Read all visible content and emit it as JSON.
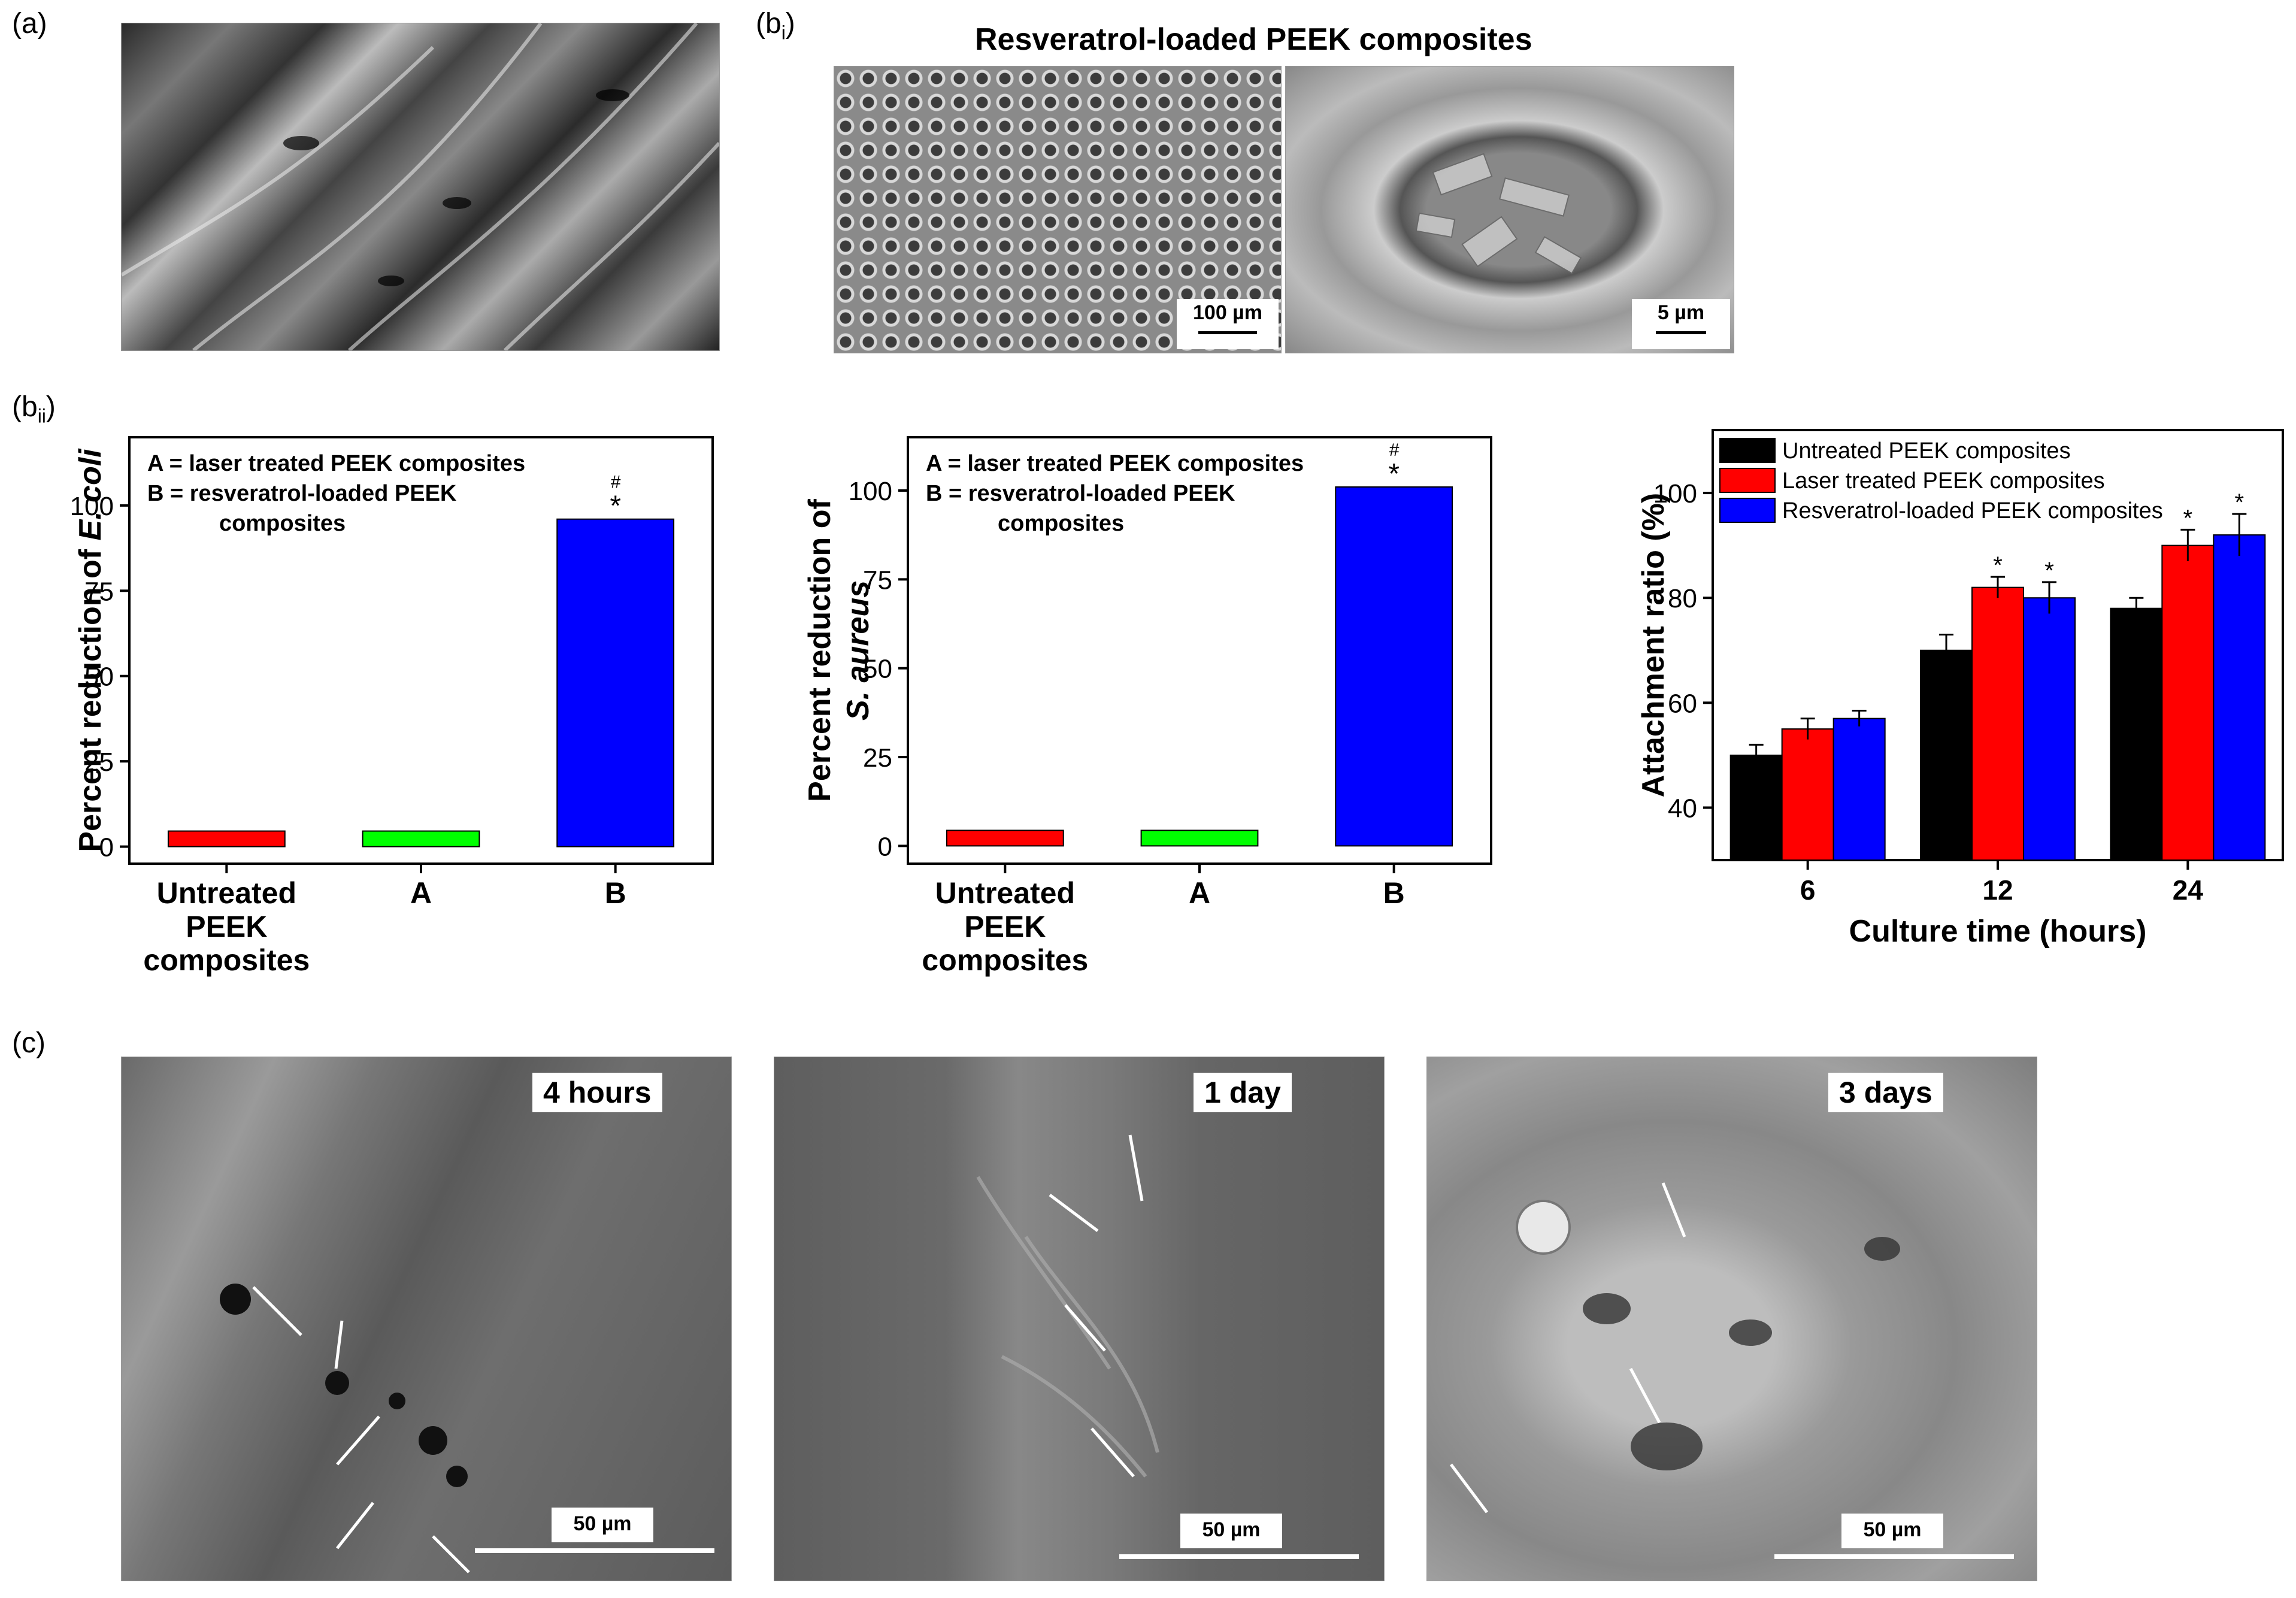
{
  "panels": {
    "a": {
      "label": "(a)"
    },
    "bi": {
      "label_main": "(b",
      "label_sub": "i",
      "label_close": ")",
      "title": "Resveratrol-loaded PEEK composites",
      "scale_left": "100 µm",
      "scale_right": "5 µm"
    },
    "bii": {
      "label_main": "(b",
      "label_sub": "ii",
      "label_close": ")"
    },
    "c": {
      "label": "(c)",
      "images": [
        {
          "time": "4 hours",
          "scale": "50 µm"
        },
        {
          "time": "1 day",
          "scale": "50 µm"
        },
        {
          "time": "3 days",
          "scale": "50 µm"
        }
      ]
    }
  },
  "chart_data": [
    {
      "type": "bar",
      "ylabel_prefix": "Percent reduction of ",
      "ylabel_italic": "E. coli",
      "categories": [
        "Untreated PEEK composites",
        "A",
        "B"
      ],
      "category_lines": [
        [
          "Untreated",
          "PEEK",
          "composites"
        ],
        [
          "A"
        ],
        [
          "B"
        ]
      ],
      "values": [
        0,
        0,
        96
      ],
      "colors": [
        "#ff0000",
        "#00ff00",
        "#0000ff"
      ],
      "ylim": [
        -5,
        120
      ],
      "yticks": [
        0,
        25,
        50,
        75,
        100
      ],
      "legend_lines": [
        "A = laser treated PEEK composites",
        "B = resveratrol-loaded PEEK",
        "composites"
      ],
      "annotations": [
        {
          "category": "B",
          "text": "#"
        },
        {
          "category": "B",
          "text": "*"
        }
      ]
    },
    {
      "type": "bar",
      "ylabel_line1": "Percent reduction of",
      "ylabel_line2": "S. aureus",
      "categories": [
        "Untreated PEEK composites",
        "A",
        "B"
      ],
      "category_lines": [
        [
          "Untreated",
          "PEEK",
          "composites"
        ],
        [
          "A"
        ],
        [
          "B"
        ]
      ],
      "values": [
        0,
        2,
        101
      ],
      "colors": [
        "#ff0000",
        "#00ff00",
        "#0000ff"
      ],
      "ylim": [
        -5,
        115
      ],
      "yticks": [
        0,
        25,
        50,
        75,
        100
      ],
      "legend_lines": [
        "A = laser treated PEEK composites",
        "B = resveratrol-loaded PEEK",
        "composites"
      ],
      "annotations": [
        {
          "category": "B",
          "text": "#"
        },
        {
          "category": "B",
          "text": "*"
        }
      ]
    },
    {
      "type": "bar",
      "xlabel": "Culture time (hours)",
      "ylabel": "Attachment ratio (%)",
      "categories": [
        "6",
        "12",
        "24"
      ],
      "ylim": [
        30,
        112
      ],
      "yticks": [
        40,
        60,
        80,
        100
      ],
      "series": [
        {
          "name": "Untreated PEEK composites",
          "color": "#000000",
          "values": [
            50,
            70,
            78
          ],
          "errors": [
            2,
            3,
            2
          ],
          "sig": [
            false,
            false,
            false
          ]
        },
        {
          "name": "Laser treated PEEK composites",
          "color": "#ff0000",
          "values": [
            55,
            82,
            90
          ],
          "errors": [
            2,
            2,
            3
          ],
          "sig": [
            false,
            true,
            true
          ]
        },
        {
          "name": "Resveratrol-loaded PEEK composites",
          "color": "#0000ff",
          "values": [
            57,
            80,
            92
          ],
          "errors": [
            1.5,
            3,
            4
          ],
          "sig": [
            false,
            true,
            true
          ]
        }
      ],
      "sig_symbol": "*",
      "legend_position": "top-left"
    }
  ]
}
